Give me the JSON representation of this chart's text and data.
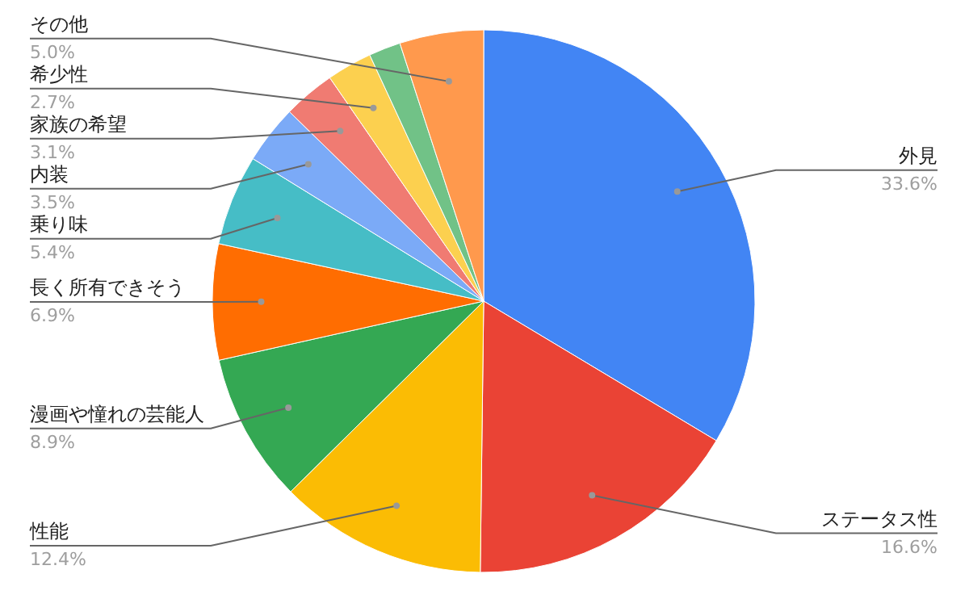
{
  "chart_data": {
    "type": "pie",
    "categories": [
      "外見",
      "ステータス性",
      "性能",
      "漫画や憧れの芸能人",
      "長く所有できそう",
      "乗り味",
      "内装",
      "家族の希望",
      "希少性",
      null,
      "その他"
    ],
    "values": [
      33.6,
      16.6,
      12.4,
      8.9,
      6.9,
      5.4,
      3.5,
      3.1,
      2.7,
      1.9,
      5.0
    ],
    "colors": [
      "#4285f4",
      "#ea4335",
      "#fbbc04",
      "#34a853",
      "#ff6d01",
      "#46bdc6",
      "#7baaf7",
      "#f07b72",
      "#fcd04f",
      "#71c287",
      "#ff994d"
    ],
    "value_labels": [
      "33.6%",
      "16.6%",
      "12.4%",
      "8.9%",
      "6.9%",
      "5.4%",
      "3.5%",
      "3.1%",
      "2.7%",
      null,
      "5.0%"
    ]
  }
}
